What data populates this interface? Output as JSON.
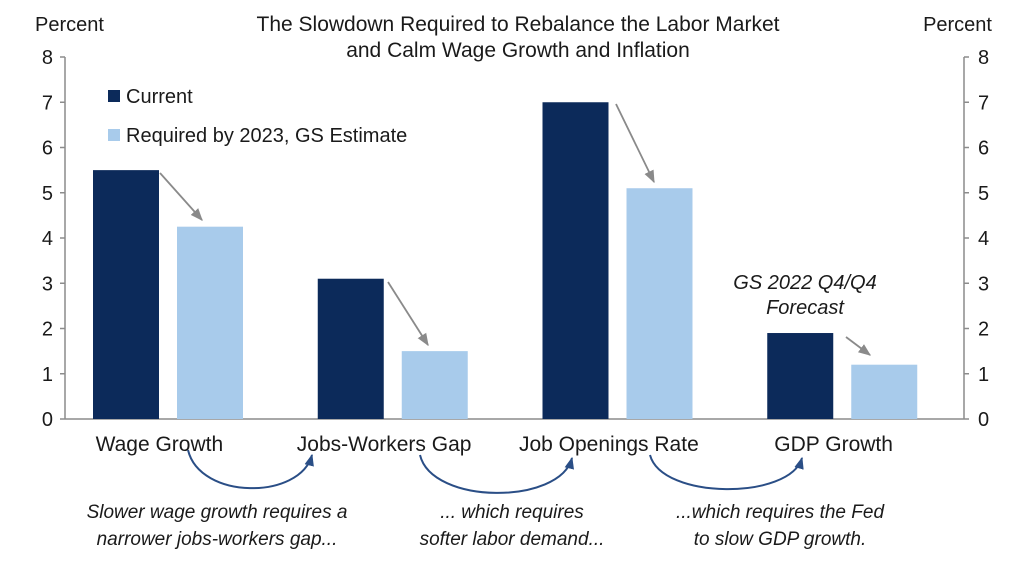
{
  "chart_data": {
    "type": "bar",
    "title": [
      "The Slowdown Required to Rebalance the Labor Market",
      "and Calm Wage Growth and Inflation"
    ],
    "ylabel_left": "Percent",
    "ylabel_right": "Percent",
    "ylim": [
      0,
      8
    ],
    "yticks": [
      "0",
      "1",
      "2",
      "3",
      "4",
      "5",
      "6",
      "7",
      "8"
    ],
    "categories": [
      "Wage Growth",
      "Jobs-Workers Gap",
      "Job Openings Rate",
      "GDP Growth"
    ],
    "series": [
      {
        "name": "Current",
        "color": "#0c2a5a",
        "values": [
          5.5,
          3.1,
          7.0,
          1.9
        ]
      },
      {
        "name": "Required by 2023, GS Estimate",
        "color": "#a8cbeb",
        "values": [
          4.25,
          1.5,
          5.1,
          1.2
        ]
      }
    ],
    "annotation": [
      "GS 2022 Q4/Q4",
      "Forecast"
    ],
    "captions": [
      [
        "Slower wage growth requires a",
        "narrower  jobs-workers gap..."
      ],
      [
        "... which requires",
        "softer labor demand..."
      ],
      [
        "...which requires the Fed",
        "to slow GDP growth."
      ]
    ],
    "grid": false,
    "legend": "top-left"
  }
}
